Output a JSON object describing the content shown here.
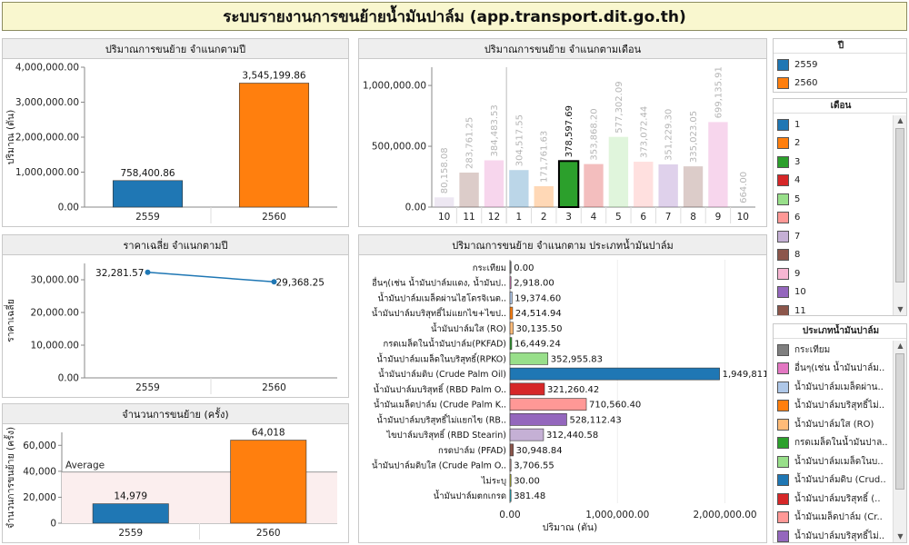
{
  "header": {
    "title": "ระบบรายงานการขนย้ายน้ำมันปาล์ม (app.transport.dit.go.th)"
  },
  "colors": {
    "y2559": "#1f77b4",
    "y2560": "#ff7f0e",
    "line": "#1f77b4"
  },
  "chart_data": [
    {
      "id": "volume-by-year",
      "type": "bar",
      "title": "ปริมาณการขนย้าย จำแนกตามปี",
      "ylabel": "ปริมาณ (ตัน)",
      "ylim": [
        0,
        4000000
      ],
      "yticks": [
        "0.00",
        "1,000,000.00",
        "2,000,000.00",
        "3,000,000.00",
        "4,000,000.00"
      ],
      "ytick_values": [
        0,
        1000000,
        2000000,
        3000000,
        4000000
      ],
      "categories": [
        "2559",
        "2560"
      ],
      "values": [
        758400.86,
        3545199.86
      ],
      "labels": [
        "758,400.86",
        "3,545,199.86"
      ],
      "colors": [
        "#1f77b4",
        "#ff7f0e"
      ]
    },
    {
      "id": "volume-by-month",
      "type": "bar",
      "title": "ปริมาณการขนย้าย จำแนกตามเดือน",
      "ylim": [
        0,
        1150000
      ],
      "yticks": [
        "0.00",
        "500,000.00",
        "1,000,000.00"
      ],
      "ytick_values": [
        0,
        500000,
        1000000
      ],
      "categories": [
        "10",
        "11",
        "12",
        "1",
        "2",
        "3",
        "4",
        "5",
        "6",
        "7",
        "8",
        "9",
        "10"
      ],
      "values": [
        80158.08,
        283761.25,
        384483.53,
        304517.55,
        171761.63,
        378597.69,
        353868.2,
        577302.09,
        373072.44,
        351229.3,
        335023.05,
        699135.91,
        664.0
      ],
      "labels": [
        "80,158.08",
        "283,761.25",
        "384,483.53",
        "304,517.55",
        "171,761.63",
        "378,597.69",
        "353,868.20",
        "577,302.09",
        "373,072.44",
        "351,229.30",
        "335,023.05",
        "699,135.91",
        "664.00"
      ],
      "colors": [
        "#c5b0d5",
        "#8c564b",
        "#e377c2",
        "#1f77b4",
        "#ff7f0e",
        "#2ca02c",
        "#d62728",
        "#98df8a",
        "#ff9896",
        "#9467bd",
        "#8c564b",
        "#e377c2",
        "#1f77b4"
      ],
      "highlight_index": 5,
      "year_split_after": 2
    },
    {
      "id": "avg-price-by-year",
      "type": "line",
      "title": "ราคาเฉลี่ย จำแนกตามปี",
      "ylabel": "ราคาเฉลี่ย",
      "ylim": [
        0,
        35000
      ],
      "yticks": [
        "0.00",
        "10,000.00",
        "20,000.00",
        "30,000.00"
      ],
      "ytick_values": [
        0,
        10000,
        20000,
        30000
      ],
      "categories": [
        "2559",
        "2560"
      ],
      "values": [
        32281.57,
        29368.25
      ],
      "labels": [
        "32,281.57",
        "29,368.25"
      ]
    },
    {
      "id": "trips-by-year",
      "type": "bar",
      "title": "จำนวนการขนย้าย (ครั้ง)",
      "ylabel": "จำนวนการขนย้าย (ครั้ง)",
      "ylim": [
        0,
        70000
      ],
      "yticks": [
        "0",
        "20,000",
        "40,000",
        "60,000"
      ],
      "ytick_values": [
        0,
        20000,
        40000,
        60000
      ],
      "categories": [
        "2559",
        "2560"
      ],
      "values": [
        14979,
        64018
      ],
      "labels": [
        "14,979",
        "64,018"
      ],
      "colors": [
        "#1f77b4",
        "#ff7f0e"
      ],
      "reference_line": {
        "label": "Average",
        "value": 39498.5
      }
    },
    {
      "id": "volume-by-type",
      "type": "bar",
      "orientation": "horizontal",
      "title": "ปริมาณการขนย้าย จำแนกตาม ประเภทน้ำมันปาล์ม",
      "xlabel": "ปริมาณ (ตัน)",
      "xlim": [
        0,
        2300000
      ],
      "xticks": [
        "0.00",
        "1,000,000.00",
        "2,000,000.00"
      ],
      "xtick_values": [
        0,
        1000000,
        2000000
      ],
      "categories": [
        "กระเทียม",
        "อื่นๆ(เช่น น้ำมันปาล์มแดง, น้ำมันป..",
        "น้ำมันปาล์มเมล็ดผ่านไฮโดรจิเนต..",
        "น้ำมันปาล์มบริสุทธิ์ไม่แยกไข+ไขป..",
        "น้ำมันปาล์มใส (RO)",
        "กรดเมล็ดในน้ำมันปาล์ม(PKFAD)",
        "น้ำมันปาล์มเมล็ดในบริสุทธิ์(RPKO)",
        "น้ำมันปาล์มดิบ (Crude Palm Oil)",
        "น้ำมันปาล์มบริสุทธิ์ (RBD Palm O..",
        "น้ำมันเมล็ดปาล์ม (Crude Palm K..",
        "น้ำมันปาล์มบริสุทธิ์ไม่แยกไข (RB..",
        "ไขปาล์มบริสุทธิ์ (RBD Stearin)",
        "กรดปาล์ม (PFAD)",
        "น้ำมันปาล์มดิบใส (Crude Palm O..",
        "ไม่ระบุ",
        "น้ำมันปาล์มตกเกรด"
      ],
      "values": [
        0,
        2918.0,
        19374.6,
        24514.94,
        30135.5,
        16449.24,
        352955.83,
        1949811.91,
        321260.42,
        710560.4,
        528112.43,
        312440.58,
        30948.84,
        3706.55,
        30.0,
        381.48
      ],
      "labels": [
        "0.00",
        "2,918.00",
        "19,374.60",
        "24,514.94",
        "30,135.50",
        "16,449.24",
        "352,955.83",
        "1,949,811.91",
        "321,260.42",
        "710,560.40",
        "528,112.43",
        "312,440.58",
        "30,948.84",
        "3,706.55",
        "30.00",
        "381.48"
      ],
      "colors": [
        "#7f7f7f",
        "#e377c2",
        "#aec7e8",
        "#ff7f0e",
        "#ffbb78",
        "#2ca02c",
        "#98df8a",
        "#1f77b4",
        "#d62728",
        "#ff9896",
        "#9467bd",
        "#c5b0d5",
        "#8c564b",
        "#c49c94",
        "#bcbd22",
        "#17becf"
      ]
    }
  ],
  "legend_year": {
    "title": "ปี",
    "items": [
      {
        "label": "2559",
        "color": "#1f77b4"
      },
      {
        "label": "2560",
        "color": "#ff7f0e"
      }
    ]
  },
  "legend_month": {
    "title": "เดือน",
    "items": [
      {
        "label": "1",
        "color": "#1f77b4"
      },
      {
        "label": "2",
        "color": "#ff7f0e"
      },
      {
        "label": "3",
        "color": "#2ca02c"
      },
      {
        "label": "4",
        "color": "#d62728"
      },
      {
        "label": "5",
        "color": "#98df8a"
      },
      {
        "label": "6",
        "color": "#ff9896"
      },
      {
        "label": "7",
        "color": "#c5b0d5"
      },
      {
        "label": "8",
        "color": "#8c564b"
      },
      {
        "label": "9",
        "color": "#f7b6d2"
      },
      {
        "label": "10",
        "color": "#9467bd"
      },
      {
        "label": "11",
        "color": "#8c564b"
      }
    ]
  },
  "legend_type": {
    "title": "ประเภทน้ำมันปาล์ม",
    "items": [
      {
        "label": "กระเทียม",
        "color": "#7f7f7f"
      },
      {
        "label": "อื่นๆ(เช่น น้ำมันปาล์ม..",
        "color": "#e377c2"
      },
      {
        "label": "น้ำมันปาล์มเมล็ดผ่าน..",
        "color": "#aec7e8"
      },
      {
        "label": "น้ำมันปาล์มบริสุทธิ์ไม่..",
        "color": "#ff7f0e"
      },
      {
        "label": "น้ำมันปาล์มใส (RO)",
        "color": "#ffbb78"
      },
      {
        "label": "กรดเมล็ดในน้ำมันปาล..",
        "color": "#2ca02c"
      },
      {
        "label": "น้ำมันปาล์มเมล็ดในบ..",
        "color": "#98df8a"
      },
      {
        "label": "น้ำมันปาล์มดิบ (Crud..",
        "color": "#1f77b4"
      },
      {
        "label": "น้ำมันปาล์มบริสุทธิ์ (..",
        "color": "#d62728"
      },
      {
        "label": "น้ำมันเมล็ดปาล์ม (Cr..",
        "color": "#ff9896"
      },
      {
        "label": "น้ำมันปาล์มบริสุทธิ์ไม่..",
        "color": "#9467bd"
      }
    ]
  }
}
